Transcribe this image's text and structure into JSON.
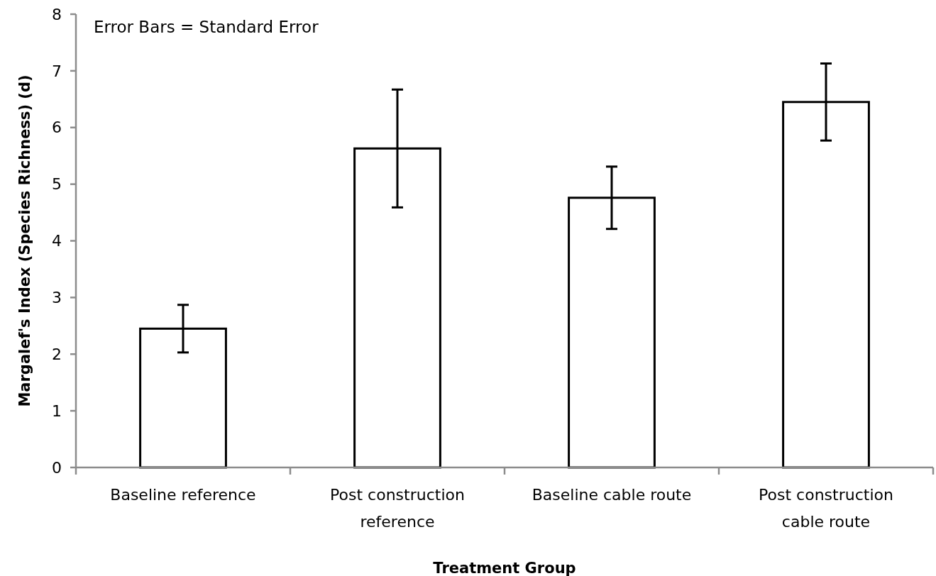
{
  "chart_data": {
    "type": "bar",
    "xlabel": "Treatment Group",
    "ylabel": "Margalef's  Index (Species Richness) (d)",
    "categories": [
      "Baseline reference",
      "Post construction reference",
      "Baseline cable route",
      "Post construction cable route"
    ],
    "values": [
      2.45,
      5.63,
      4.76,
      6.45
    ],
    "errors": [
      0.42,
      1.04,
      0.55,
      0.68
    ],
    "color": "#ffffff",
    "ylim": [
      0,
      8
    ],
    "yticks": [
      0,
      1,
      2,
      3,
      4,
      5,
      6,
      7,
      8
    ],
    "annotations": [
      "Error Bars = Standard Error"
    ]
  }
}
